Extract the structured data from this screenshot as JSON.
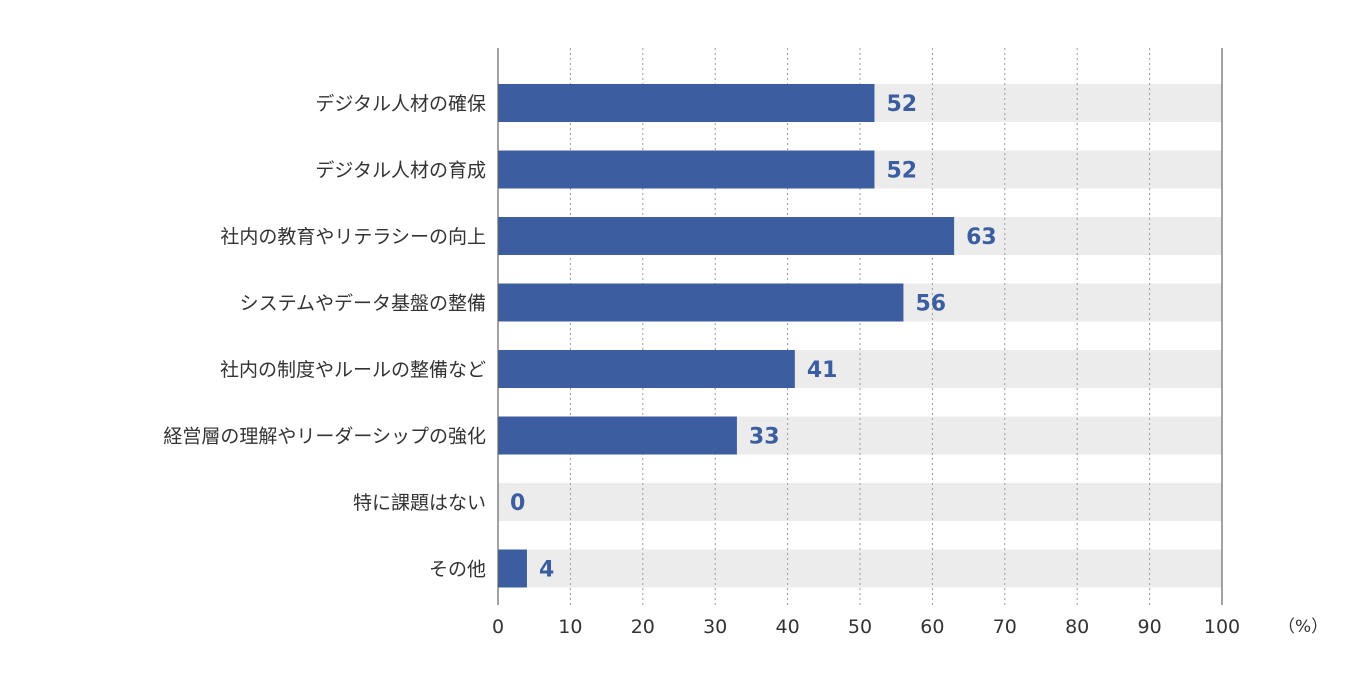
{
  "chart_data": {
    "type": "bar",
    "orientation": "horizontal",
    "categories": [
      "デジタル人材の確保",
      "デジタル人材の育成",
      "社内の教育やリテラシーの向上",
      "システムやデータ基盤の整備",
      "社内の制度やルールの整備など",
      "経営層の理解やリーダーシップの強化",
      "特に課題はない",
      "その他"
    ],
    "values": [
      52,
      52,
      63,
      56,
      41,
      33,
      0,
      4
    ],
    "xlim": [
      0,
      100
    ],
    "xticks": [
      0,
      10,
      20,
      30,
      40,
      50,
      60,
      70,
      80,
      90,
      100
    ],
    "unit_label": "（%）",
    "grid": true,
    "legend": "none"
  },
  "colors": {
    "bar": "#3c5ea1",
    "track": "#ececec",
    "value_text": "#3c5ea1",
    "text": "#333333",
    "grid": "#999999",
    "axis": "#666666"
  }
}
